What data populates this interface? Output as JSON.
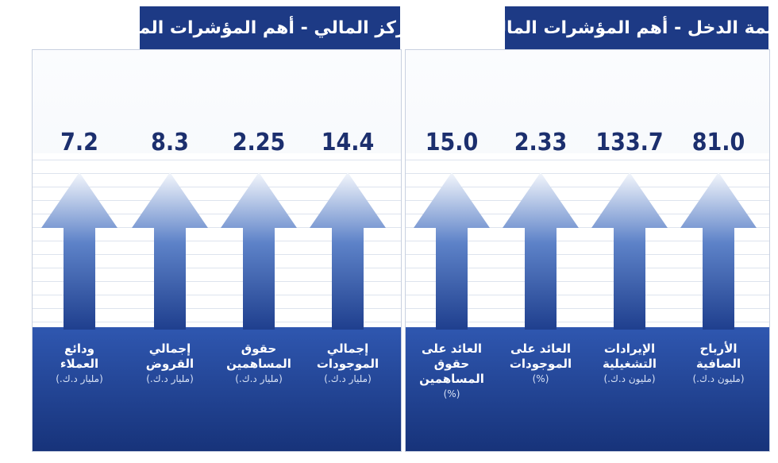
{
  "panels": [
    {
      "title": "قائمة الدخل - أهم المؤشرات المالية",
      "items": [
        {
          "value": "81.0",
          "label": [
            "الأرباح",
            "الصافية"
          ],
          "unit": "(مليون د.ك.)"
        },
        {
          "value": "133.7",
          "label": [
            "الإيرادات",
            "التشغيلية"
          ],
          "unit": "(مليون د.ك.)"
        },
        {
          "value": "2.33",
          "label": [
            "العائد على",
            "الموجودات"
          ],
          "unit": "(%)"
        },
        {
          "value": "15.0",
          "label": [
            "العائد على",
            "حقوق",
            "المساهمين"
          ],
          "unit": "(%)"
        }
      ]
    },
    {
      "title": "المركز المالي - أهم المؤشرات المالية",
      "items": [
        {
          "value": "14.4",
          "label": [
            "إجمالي",
            "الموجودات"
          ],
          "unit": "(مليار د.ك.)"
        },
        {
          "value": "2.25",
          "label": [
            "حقوق",
            "المساهمين"
          ],
          "unit": "(مليار د.ك.)"
        },
        {
          "value": "8.3",
          "label": [
            "إجمالي",
            "القروض"
          ],
          "unit": "(مليار د.ك.)"
        },
        {
          "value": "7.2",
          "label": [
            "ودائع",
            "العملاء"
          ],
          "unit": "(مليار د.ك.)"
        }
      ]
    }
  ]
}
